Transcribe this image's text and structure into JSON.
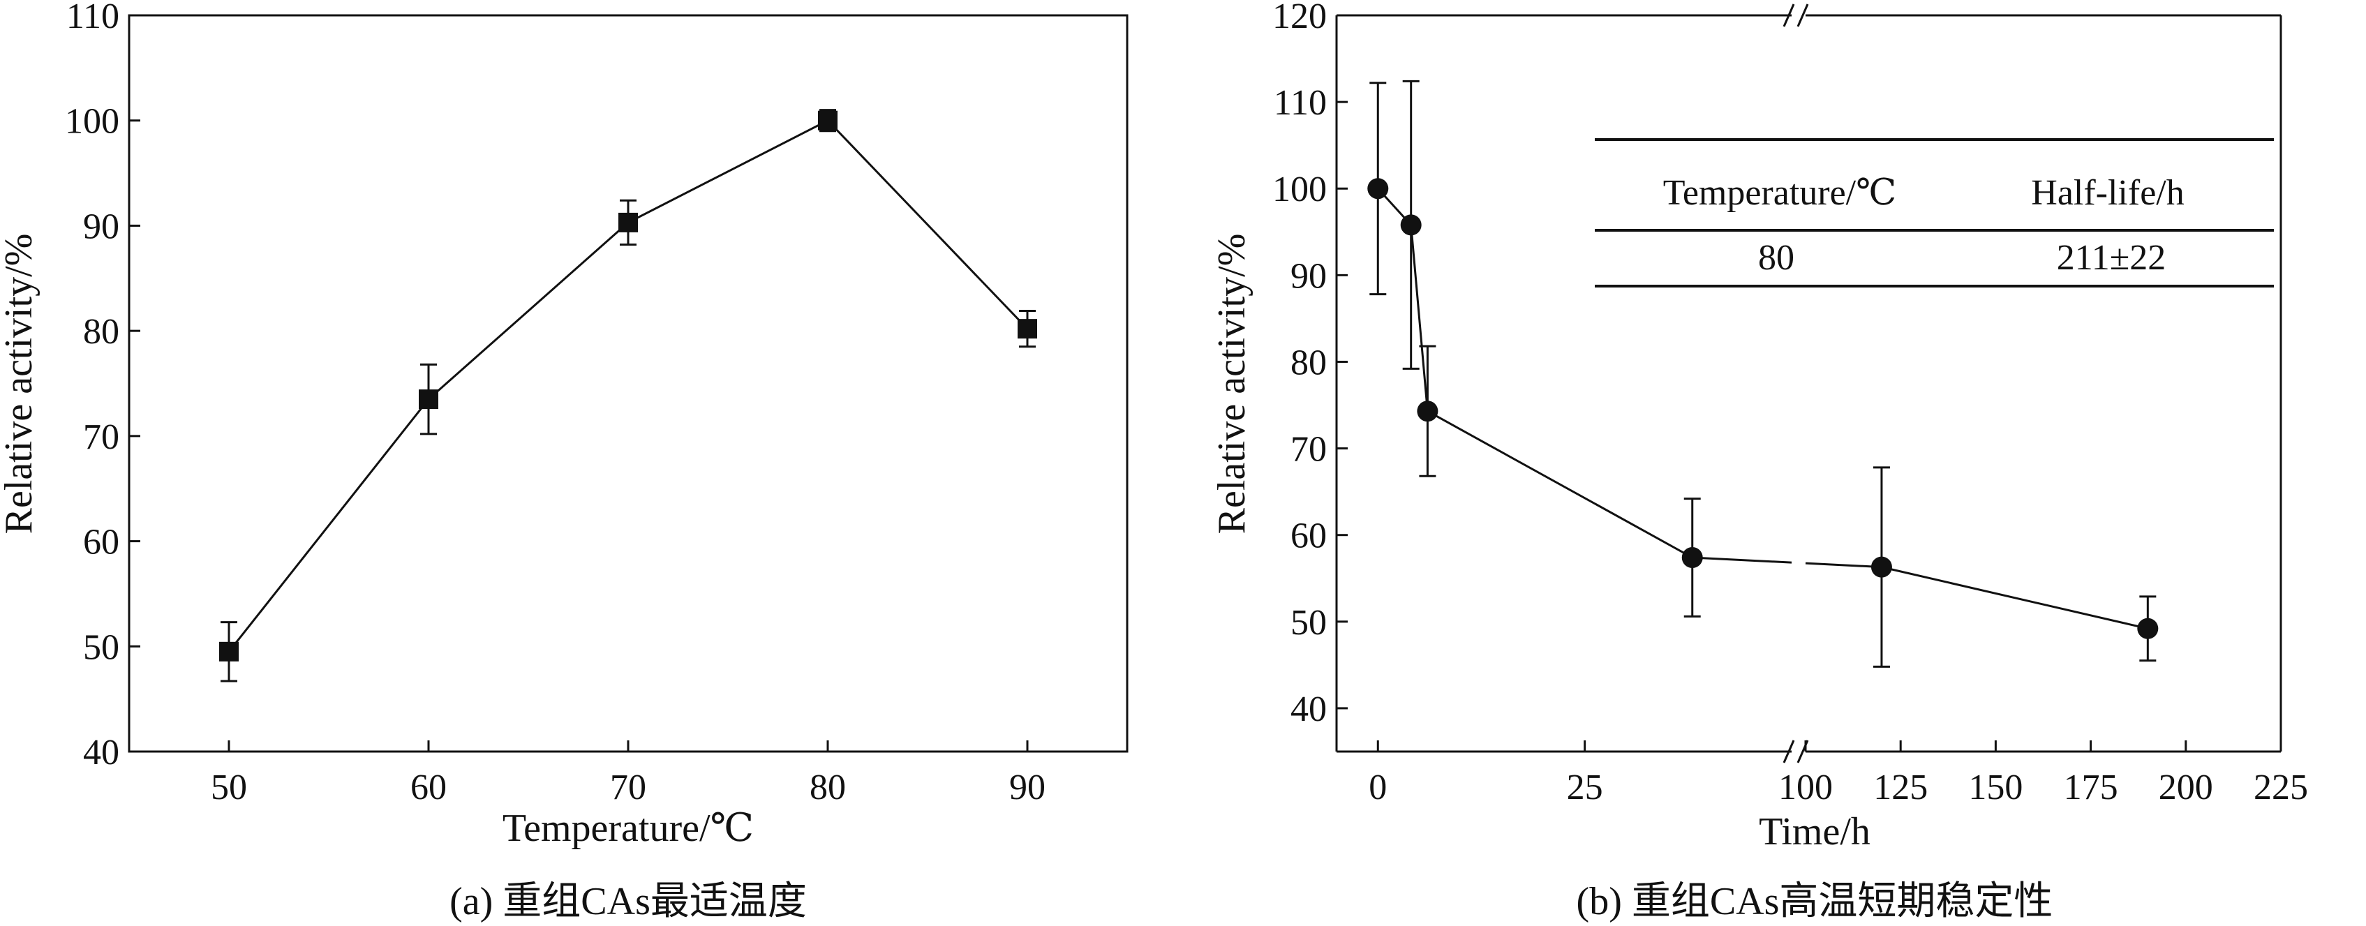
{
  "chart_data": [
    {
      "type": "line",
      "marker": "square",
      "caption": "(a) 重组CAs最适温度",
      "xlabel": "Temperature/℃",
      "ylabel": "Relative activity/%",
      "xlim": [
        45,
        95
      ],
      "ylim": [
        40,
        110
      ],
      "xticks": [
        50,
        60,
        70,
        80,
        90
      ],
      "yticks": [
        40,
        50,
        60,
        70,
        80,
        90,
        100,
        110
      ],
      "series": [
        {
          "name": "Relative activity",
          "x": [
            50,
            60,
            70,
            80,
            90
          ],
          "values": [
            49.5,
            73.5,
            90.3,
            100.0,
            80.2
          ],
          "error": [
            2.8,
            3.3,
            2.1,
            1.0,
            1.7
          ]
        }
      ]
    },
    {
      "type": "line",
      "marker": "circle",
      "caption": "(b) 重组CAs高温短期稳定性",
      "xlabel": "Time/h",
      "ylabel": "Relative activity/%",
      "ylim": [
        35,
        120
      ],
      "yticks": [
        40,
        50,
        60,
        70,
        80,
        90,
        100,
        110,
        120
      ],
      "axis_break": true,
      "segments": [
        {
          "range": [
            -5,
            50
          ],
          "ticks": [
            0,
            25
          ]
        },
        {
          "range": [
            100,
            225
          ],
          "ticks": [
            100,
            125,
            150,
            175,
            200,
            225
          ]
        }
      ],
      "series": [
        {
          "name": "Relative activity",
          "x": [
            0,
            4,
            6,
            38,
            120,
            190
          ],
          "values": [
            100.0,
            95.8,
            74.3,
            57.4,
            56.3,
            49.2
          ],
          "error": [
            12.2,
            16.6,
            7.5,
            6.8,
            11.5,
            3.7
          ]
        }
      ],
      "table": {
        "headers": [
          "Temperature/℃",
          "Half-life/h"
        ],
        "rows": [
          [
            "80",
            "211±22"
          ]
        ]
      }
    }
  ]
}
